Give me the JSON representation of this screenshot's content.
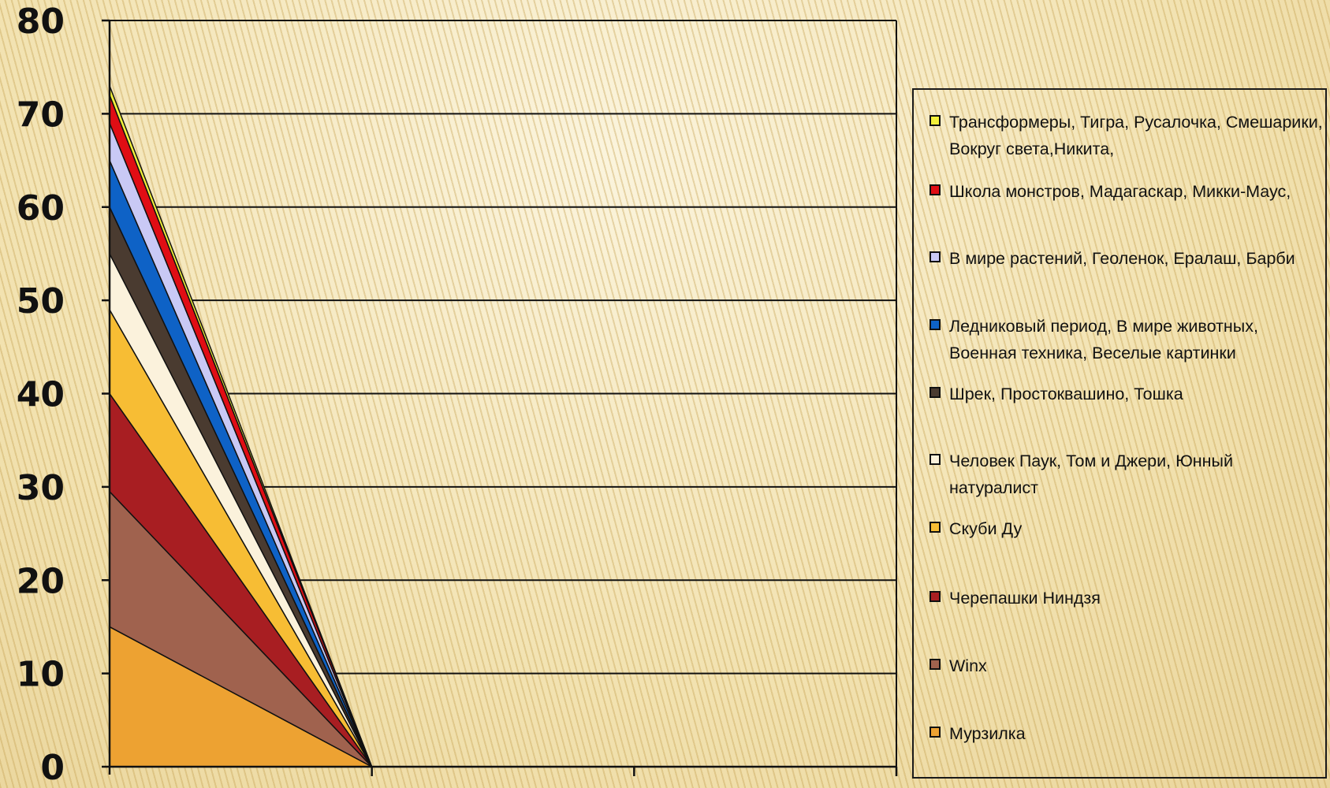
{
  "chart_data": {
    "type": "area",
    "stacked": true,
    "categories": [
      "",
      "",
      ""
    ],
    "ylim": [
      0,
      80
    ],
    "yticks": [
      0,
      10,
      20,
      30,
      40,
      50,
      60,
      70,
      80
    ],
    "grid": true,
    "legend_position": "right",
    "series": [
      {
        "name": "Мурзилка",
        "color": "#eda232",
        "values": [
          15,
          0,
          0
        ]
      },
      {
        "name": "Winx",
        "color": "#a0624e",
        "values": [
          14.5,
          0,
          0
        ]
      },
      {
        "name": "Черепашки Ниндзя",
        "color": "#a81e22",
        "values": [
          10.5,
          0,
          0
        ]
      },
      {
        "name": "Скуби Ду",
        "color": "#f7bd34",
        "values": [
          9,
          0,
          0
        ]
      },
      {
        "name": "Человек Паук, Том и Джери, Юнный натуралист",
        "color": "#fbf2dc",
        "values": [
          6,
          0,
          0
        ]
      },
      {
        "name": "Шрек, Простоквашино, Тошка",
        "color": "#4a3b30",
        "values": [
          5,
          0,
          0
        ]
      },
      {
        "name": "Ледниковый период, В мире животных, Военная техника, Веселые картинки",
        "color": "#0e62c6",
        "values": [
          5,
          0,
          0
        ]
      },
      {
        "name": "В мире растений, Геоленок, Ералаш, Барби",
        "color": "#c9c9f5",
        "values": [
          4,
          0,
          0
        ]
      },
      {
        "name": "Школа монстров, Мадагаскар, Микки-Маус,",
        "color": "#e00d14",
        "values": [
          3,
          0,
          0
        ]
      },
      {
        "name": "Трансформеры, Тигра, Русалочка, Смешарики, Вокруг света,Никита,",
        "color": "#f3f03a",
        "values": [
          1,
          0,
          0
        ]
      }
    ]
  }
}
